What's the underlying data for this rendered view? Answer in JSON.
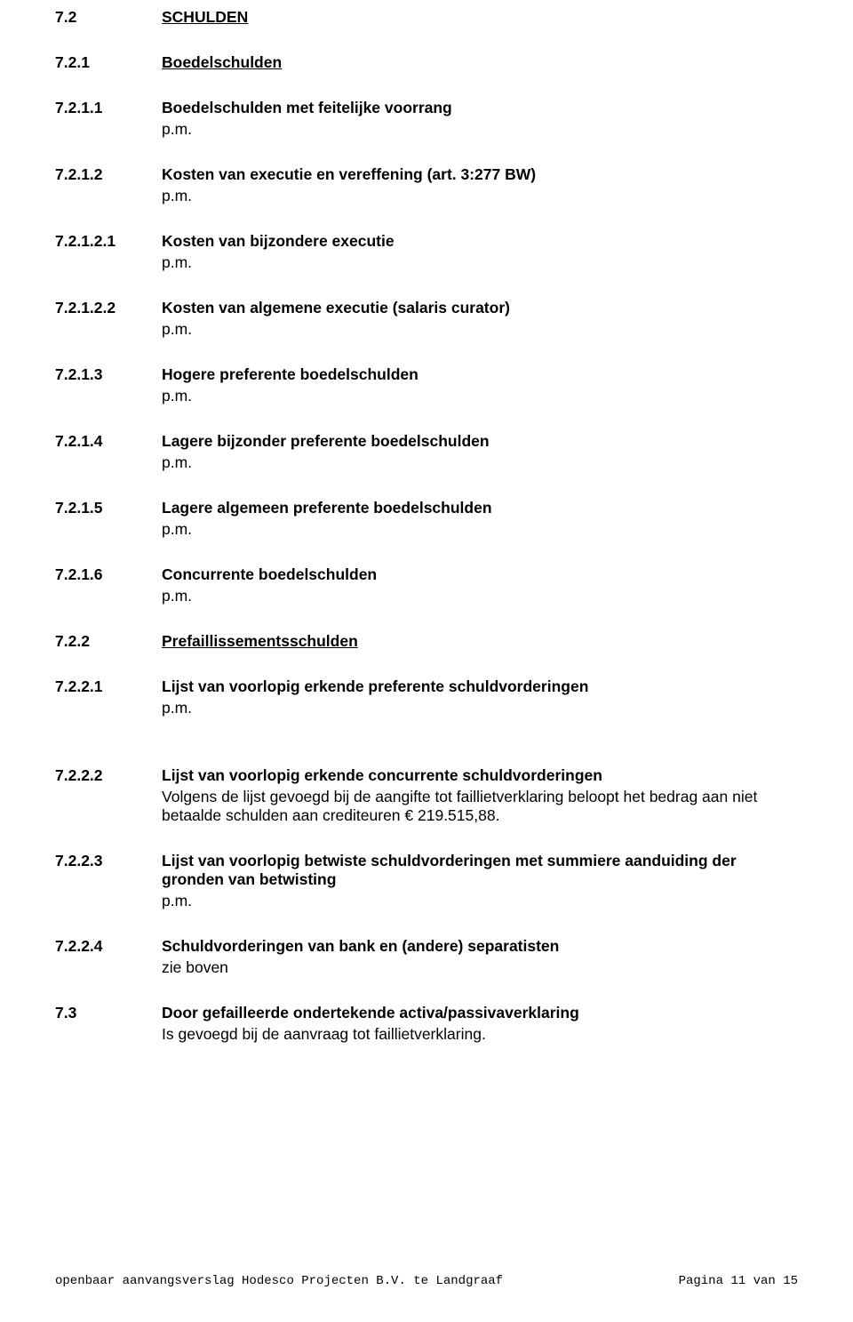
{
  "sections": [
    {
      "num": "7.2",
      "title": "SCHULDEN",
      "underline": true,
      "pm": false
    },
    {
      "num": "7.2.1",
      "title": "Boedelschulden",
      "underline": true,
      "pm": false
    },
    {
      "num": "7.2.1.1",
      "title": "Boedelschulden met feitelijke voorrang",
      "underline": false,
      "pm": true
    },
    {
      "num": "7.2.1.2",
      "title": "Kosten van executie en vereffening (art. 3:277 BW)",
      "underline": false,
      "pm": true
    },
    {
      "num": "7.2.1.2.1",
      "title": "Kosten van bijzondere executie",
      "underline": false,
      "pm": true
    },
    {
      "num": "7.2.1.2.2",
      "title": "Kosten van algemene executie (salaris curator)",
      "underline": false,
      "pm": true
    },
    {
      "num": "7.2.1.3",
      "title": "Hogere preferente boedelschulden",
      "underline": false,
      "pm": true
    },
    {
      "num": "7.2.1.4",
      "title": "Lagere bijzonder preferente boedelschulden",
      "underline": false,
      "pm": true
    },
    {
      "num": "7.2.1.5",
      "title": "Lagere algemeen preferente boedelschulden",
      "underline": false,
      "pm": true
    },
    {
      "num": "7.2.1.6",
      "title": "Concurrente boedelschulden",
      "underline": false,
      "pm": true
    },
    {
      "num": "7.2.2",
      "title": "Prefaillissementsschulden",
      "underline": true,
      "pm": false
    },
    {
      "num": "7.2.2.1",
      "title": "Lijst van voorlopig erkende preferente schuldvorderingen",
      "underline": false,
      "pm": true
    }
  ],
  "section_7222": {
    "num": "7.2.2.2",
    "title": "Lijst van voorlopig erkende concurrente schuldvorderingen",
    "body": "Volgens de lijst gevoegd bij de aangifte tot faillietverklaring beloopt het bedrag aan niet betaalde schulden aan crediteuren € 219.515,88."
  },
  "section_7223": {
    "num": "7.2.2.3",
    "title": "Lijst van voorlopig betwiste schuldvorderingen met summiere aanduiding der gronden van betwisting"
  },
  "section_7224": {
    "num": "7.2.2.4",
    "title": "Schuldvorderingen van bank en (andere) separatisten",
    "body": "zie boven"
  },
  "section_73": {
    "num": "7.3",
    "title": "Door gefailleerde ondertekende activa/passivaverklaring",
    "body": "Is gevoegd bij de aanvraag tot faillietverklaring."
  },
  "pm_label": "p.m.",
  "footer_left": "openbaar aanvangsverslag Hodesco Projecten B.V. te Landgraaf",
  "footer_right": "Pagina 11 van 15"
}
